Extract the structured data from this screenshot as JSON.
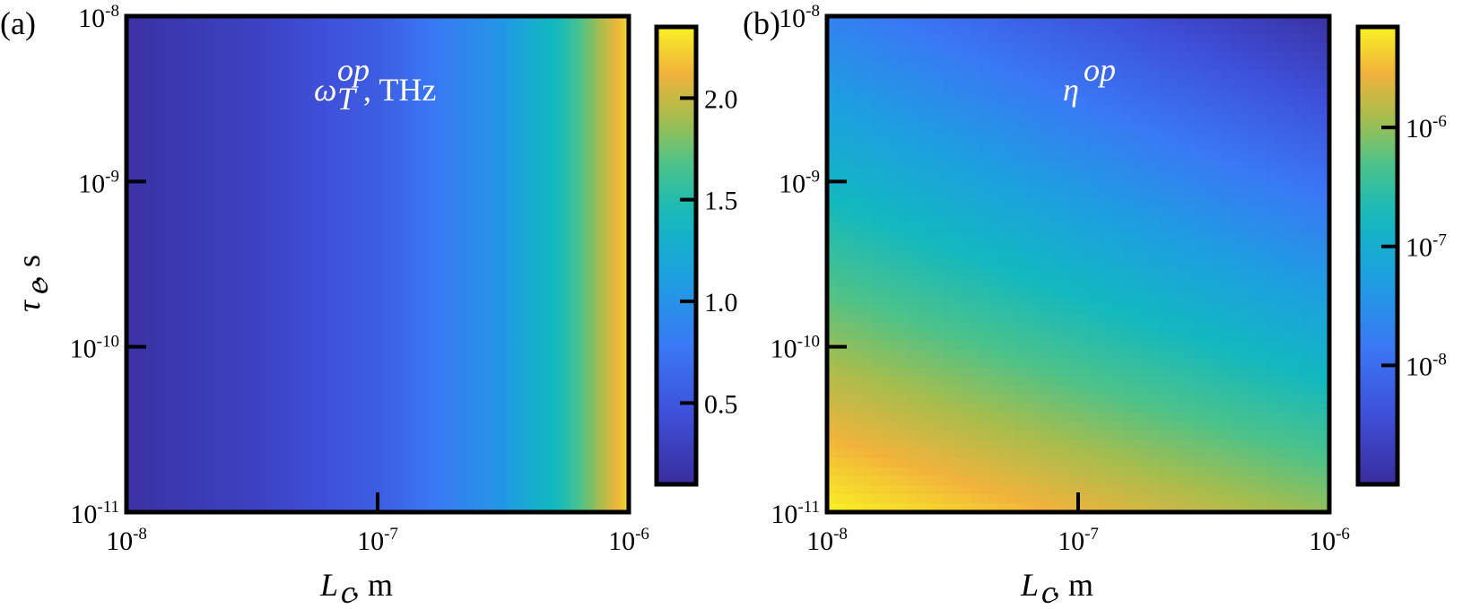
{
  "chart_data": [
    {
      "type": "heatmap",
      "panel_label": "(a)",
      "inset_label": {
        "symbol": "ω",
        "superscript": "op",
        "subscript": "T",
        "unit": ", THz"
      },
      "x_var": "L",
      "x_sub": "c",
      "x_unit": ", m",
      "y_var": "τ",
      "y_sub": "e",
      "y_unit": ", s",
      "x_scale": "log",
      "y_scale": "log",
      "xlim": [
        1e-08,
        1e-06
      ],
      "ylim": [
        1e-11,
        1e-08
      ],
      "x_ticks": [
        {
          "base": "10",
          "exp": "-8"
        },
        {
          "base": "10",
          "exp": "-7"
        },
        {
          "base": "10",
          "exp": "-6"
        }
      ],
      "y_ticks": [
        {
          "base": "10",
          "exp": "-11"
        },
        {
          "base": "10",
          "exp": "-10"
        },
        {
          "base": "10",
          "exp": "-9"
        },
        {
          "base": "10",
          "exp": "-8"
        }
      ],
      "colorbar": {
        "scale": "linear",
        "range": [
          0.1,
          2.35
        ],
        "ticks": [
          "0.5",
          "1.0",
          "1.5",
          "2.0"
        ],
        "tick_values": [
          0.5,
          1.0,
          1.5,
          2.0
        ]
      },
      "z_profile_x": {
        "log10_x": [
          -8,
          -7.5,
          -7,
          -6.5,
          -6.25,
          -6
        ],
        "values": [
          0.15,
          0.3,
          0.55,
          1.05,
          1.5,
          2.25
        ]
      }
    },
    {
      "type": "heatmap",
      "panel_label": "(b)",
      "inset_label": {
        "symbol": "η",
        "superscript": "op"
      },
      "x_var": "L",
      "x_sub": "c",
      "x_unit": ", m",
      "x_scale": "log",
      "y_scale": "log",
      "xlim": [
        1e-08,
        1e-06
      ],
      "ylim": [
        1e-11,
        1e-08
      ],
      "x_ticks": [
        {
          "base": "10",
          "exp": "-8"
        },
        {
          "base": "10",
          "exp": "-7"
        },
        {
          "base": "10",
          "exp": "-6"
        }
      ],
      "y_ticks": [
        {
          "base": "10",
          "exp": "-11"
        },
        {
          "base": "10",
          "exp": "-10"
        },
        {
          "base": "10",
          "exp": "-9"
        },
        {
          "base": "10",
          "exp": "-8"
        }
      ],
      "colorbar": {
        "scale": "log",
        "range": [
          1e-09,
          7e-06
        ],
        "ticks": [
          {
            "base": "10",
            "exp": "-8"
          },
          {
            "base": "10",
            "exp": "-7"
          },
          {
            "base": "10",
            "exp": "-6"
          }
        ],
        "tick_values": [
          1e-08,
          1e-07,
          1e-06
        ]
      },
      "z_corners": {
        "xmin_ymin": 7e-06,
        "xmax_ymin": 1e-06,
        "xmin_ymax": 2e-08,
        "xmax_ymax": 1.2e-09
      }
    }
  ]
}
